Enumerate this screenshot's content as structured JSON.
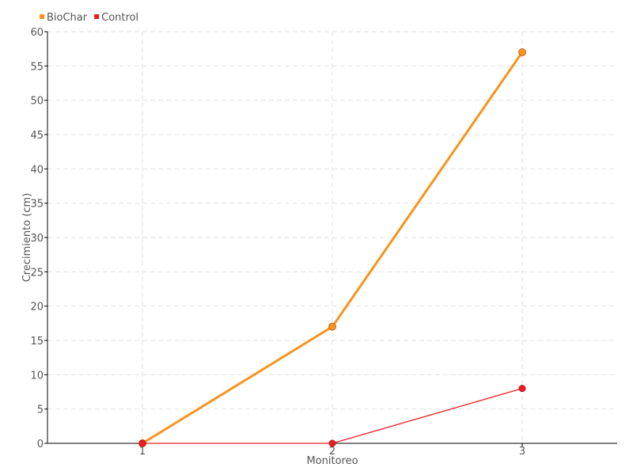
{
  "chart_data": {
    "type": "line",
    "title": "",
    "xlabel": "Monitoreo",
    "ylabel": "Crecimiento (cm)",
    "x": [
      1,
      2,
      3
    ],
    "xlim": [
      0.5,
      3.5
    ],
    "ylim": [
      0,
      60
    ],
    "yticks": [
      0,
      5,
      10,
      15,
      20,
      25,
      30,
      35,
      40,
      45,
      50,
      55,
      60
    ],
    "xticks": [
      1,
      2,
      3
    ],
    "grid": true,
    "legend_position": "top-left",
    "series": [
      {
        "name": "BioChar",
        "values": [
          0,
          17,
          57
        ],
        "color": "#f7941d"
      },
      {
        "name": "Control",
        "values": [
          0,
          0,
          8
        ],
        "color": "#ed1c24"
      }
    ]
  }
}
